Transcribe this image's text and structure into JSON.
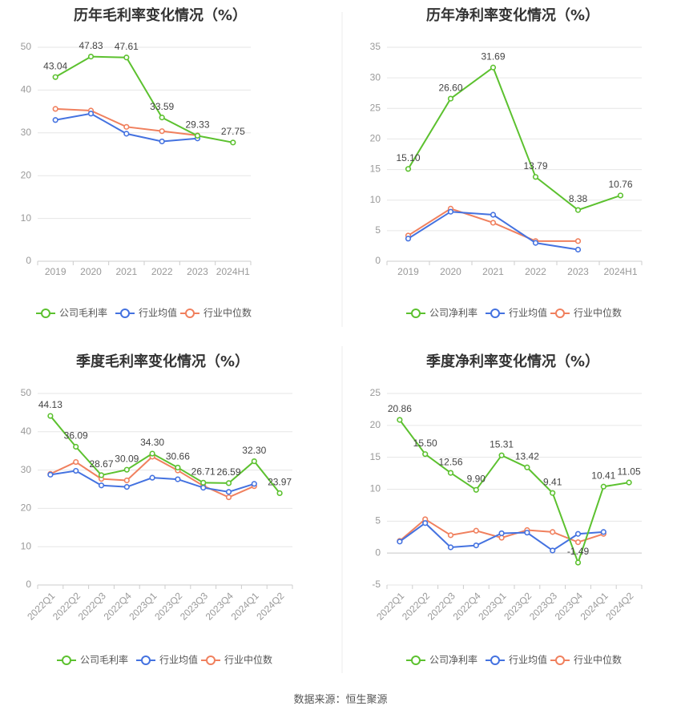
{
  "colors": {
    "company": "#5cc12f",
    "industry_avg": "#4472e0",
    "industry_median": "#f0805e",
    "axis_text": "#999999",
    "grid": "#e6e6e6",
    "label_text": "#444444"
  },
  "legend": {
    "gross_company": "公司毛利率",
    "net_company": "公司净利率",
    "industry_avg": "行业均值",
    "industry_median": "行业中位数"
  },
  "source": "数据来源：恒生聚源",
  "chart_data": [
    {
      "type": "line",
      "title": "历年毛利率变化情况（%）",
      "categories": [
        "2019",
        "2020",
        "2021",
        "2022",
        "2023",
        "2024H1"
      ],
      "ylim": [
        0,
        50
      ],
      "yticks": [
        0,
        10,
        20,
        30,
        40,
        50
      ],
      "grid": true,
      "legend_position": "bottom",
      "series": [
        {
          "name": "公司毛利率",
          "values": [
            43.04,
            47.83,
            47.61,
            33.59,
            29.33,
            27.75
          ],
          "labels": [
            "43.04",
            "47.83",
            "47.61",
            "33.59",
            "29.33",
            "27.75"
          ]
        },
        {
          "name": "行业均值",
          "values": [
            33.0,
            34.5,
            29.8,
            28.0,
            28.7,
            null
          ]
        },
        {
          "name": "行业中位数",
          "values": [
            35.6,
            35.2,
            31.4,
            30.4,
            29.4,
            null
          ]
        }
      ]
    },
    {
      "type": "line",
      "title": "历年净利率变化情况（%）",
      "categories": [
        "2019",
        "2020",
        "2021",
        "2022",
        "2023",
        "2024H1"
      ],
      "ylim": [
        0,
        35
      ],
      "yticks": [
        0,
        5,
        10,
        15,
        20,
        25,
        30,
        35
      ],
      "grid": true,
      "legend_position": "bottom",
      "series": [
        {
          "name": "公司净利率",
          "values": [
            15.1,
            26.6,
            31.69,
            13.79,
            8.38,
            10.76
          ],
          "labels": [
            "15.10",
            "26.60",
            "31.69",
            "13.79",
            "8.38",
            "10.76"
          ]
        },
        {
          "name": "行业均值",
          "values": [
            3.7,
            8.1,
            7.6,
            3.0,
            1.9,
            null
          ]
        },
        {
          "name": "行业中位数",
          "values": [
            4.2,
            8.6,
            6.3,
            3.3,
            3.3,
            null
          ]
        }
      ]
    },
    {
      "type": "line",
      "title": "季度毛利率变化情况（%）",
      "categories": [
        "2022Q1",
        "2022Q2",
        "2022Q3",
        "2022Q4",
        "2023Q1",
        "2023Q2",
        "2023Q3",
        "2023Q4",
        "2024Q1",
        "2024Q2"
      ],
      "ylim": [
        0,
        50
      ],
      "yticks": [
        0,
        10,
        20,
        30,
        40,
        50
      ],
      "grid": true,
      "legend_position": "bottom",
      "series": [
        {
          "name": "公司毛利率",
          "values": [
            44.13,
            36.09,
            28.67,
            30.09,
            34.3,
            30.66,
            26.71,
            26.59,
            32.3,
            23.97
          ],
          "labels": [
            "44.13",
            "36.09",
            "28.67",
            "30.09",
            "34.30",
            "30.66",
            "26.71",
            "26.59",
            "32.30",
            "23.97"
          ]
        },
        {
          "name": "行业均值",
          "values": [
            28.8,
            29.8,
            26.0,
            25.6,
            28.0,
            27.6,
            25.4,
            24.3,
            26.4,
            null
          ]
        },
        {
          "name": "行业中位数",
          "values": [
            29.0,
            32.1,
            27.7,
            27.3,
            33.5,
            29.9,
            25.9,
            22.9,
            25.8,
            null
          ]
        }
      ]
    },
    {
      "type": "line",
      "title": "季度净利率变化情况（%）",
      "categories": [
        "2022Q1",
        "2022Q2",
        "2022Q3",
        "2022Q4",
        "2023Q1",
        "2023Q2",
        "2023Q3",
        "2023Q4",
        "2024Q1",
        "2024Q2"
      ],
      "ylim": [
        -5,
        25
      ],
      "yticks": [
        -5,
        0,
        5,
        10,
        15,
        20,
        25
      ],
      "grid": true,
      "legend_position": "bottom",
      "series": [
        {
          "name": "公司净利率",
          "values": [
            20.86,
            15.5,
            12.56,
            9.9,
            15.31,
            13.42,
            9.41,
            -1.49,
            10.41,
            11.05
          ],
          "labels": [
            "20.86",
            "15.50",
            "12.56",
            "9.90",
            "15.31",
            "13.42",
            "9.41",
            "-1.49",
            "10.41",
            "11.05"
          ]
        },
        {
          "name": "行业均值",
          "values": [
            1.8,
            4.7,
            0.9,
            1.2,
            3.1,
            3.2,
            0.4,
            3.0,
            3.3,
            null
          ]
        },
        {
          "name": "行业中位数",
          "values": [
            1.9,
            5.3,
            2.8,
            3.5,
            2.4,
            3.6,
            3.3,
            1.7,
            3.0,
            null
          ]
        }
      ]
    }
  ]
}
